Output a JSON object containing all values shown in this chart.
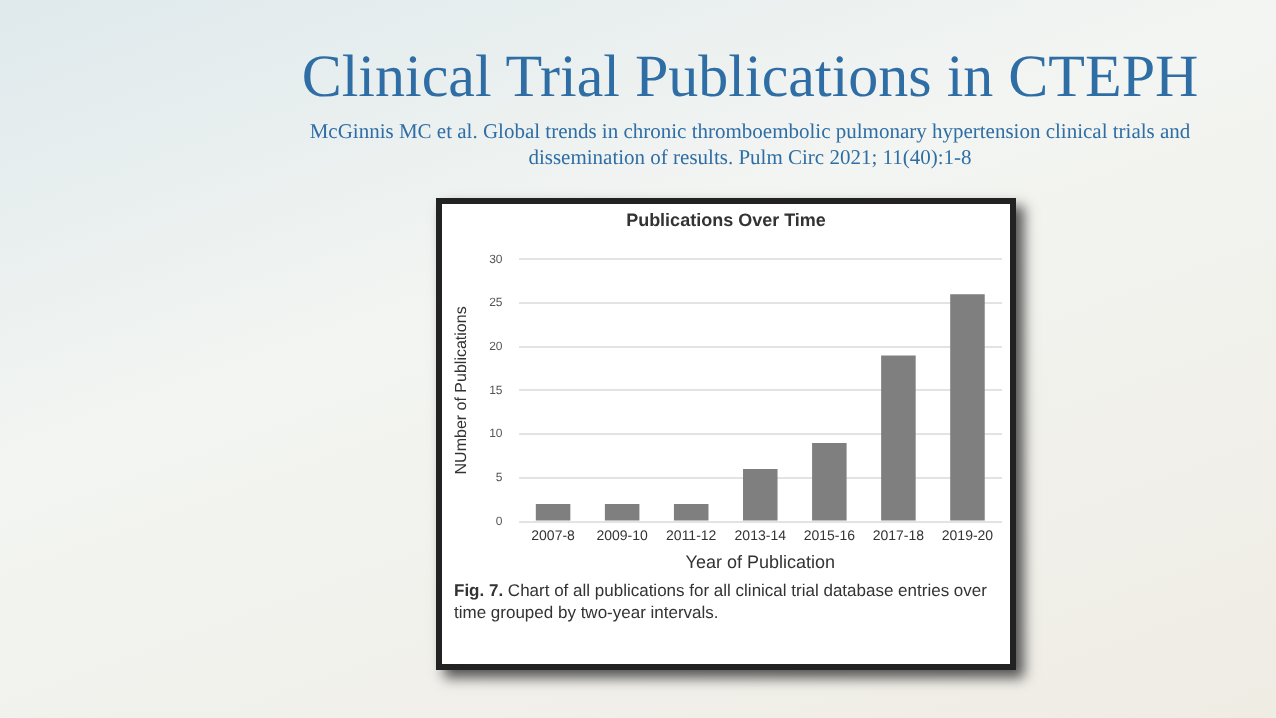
{
  "chart_data": {
    "type": "bar",
    "title": "Clinical Trial Publications in CTEPH",
    "subtitle": "McGinnis MC et al. Global trends in chronic thromboembolic pulmonary hypertension clinical trials and dissemination of results.  Pulm Circ 2021; 11(40):1-8",
    "annotations": [
      "Publications Over Time",
      "Fig. 7. Chart of all publications for all clinical trial database entries over time grouped by two-year intervals."
    ],
    "xlabel": "Year of Publication",
    "ylabel": "NUmber of Publications",
    "categories": [
      "2007-8",
      "2009-10",
      "2011-12",
      "2013-14",
      "2015-16",
      "2017-18",
      "2019-20"
    ],
    "values": [
      2,
      2,
      2,
      6,
      9,
      19,
      26
    ],
    "color": "#7f7f7f",
    "ylim": [
      0,
      30
    ],
    "yticks": [
      0,
      5,
      10,
      15,
      20,
      25,
      30
    ],
    "grid": "y",
    "legend": false
  }
}
